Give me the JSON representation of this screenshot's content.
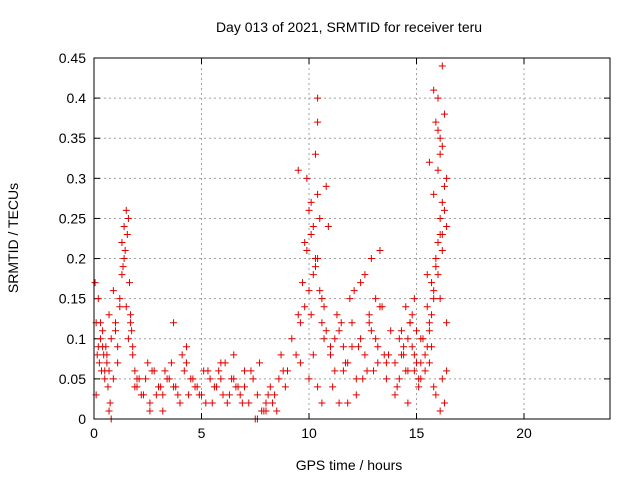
{
  "chart_data": {
    "type": "scatter",
    "title": "Day 013 of 2021, SRMTID for receiver teru",
    "xlabel": "GPS time / hours",
    "ylabel": "SRMTID / TECUs",
    "xlim": [
      0,
      24
    ],
    "ylim": [
      0,
      0.45
    ],
    "xticks": [
      0,
      5,
      10,
      15,
      20
    ],
    "yticks": [
      0,
      0.05,
      0.1,
      0.15,
      0.2,
      0.25,
      0.3,
      0.35,
      0.4,
      0.45
    ],
    "xtick_labels": [
      "0",
      "5",
      "10",
      "15",
      "20"
    ],
    "ytick_labels": [
      "0",
      "0.05",
      "0.1",
      "0.15",
      "0.2",
      "0.25",
      "0.3",
      "0.35",
      "0.4",
      "0.45"
    ],
    "grid": true,
    "marker": "+",
    "color": "#e00000",
    "series": [
      {
        "x": [
          0.05,
          0.1,
          0.15,
          0.2,
          0.25,
          0.3,
          0.35,
          0.4,
          0.45,
          0.5,
          0.55,
          0.6,
          0.65,
          0.7,
          0.1,
          0.2,
          0.3,
          0.4,
          0.5,
          0.6,
          0.7,
          0.8,
          0.9,
          1.0,
          1.1,
          1.2,
          0.9,
          1.0,
          1.1,
          1.2,
          1.3,
          1.4,
          1.3,
          1.35,
          1.4,
          1.45,
          1.5,
          1.55,
          1.6,
          1.65,
          1.7,
          1.75,
          1.5,
          1.6,
          1.7,
          1.8,
          1.9,
          2.0,
          1.8,
          1.9,
          0.7,
          0.8,
          0.75,
          2.0,
          2.2,
          2.4,
          2.6,
          2.8,
          3.0,
          3.2,
          3.4,
          3.6,
          3.8,
          4.0,
          4.2,
          4.4,
          4.6,
          4.8,
          5.0,
          5.2,
          5.4,
          5.6,
          5.8,
          6.0,
          6.2,
          6.4,
          6.6,
          6.8,
          7.0,
          2.1,
          2.5,
          2.9,
          3.3,
          3.7,
          4.1,
          4.5,
          4.9,
          5.3,
          5.7,
          6.1,
          6.5,
          6.9,
          2.3,
          2.7,
          3.1,
          3.5,
          3.9,
          4.3,
          4.7,
          5.1,
          5.5,
          5.9,
          6.3,
          6.7,
          3.7,
          4.3,
          6.5,
          5.9,
          3.2,
          2.6,
          7.0,
          7.2,
          7.4,
          7.6,
          7.8,
          8.0,
          8.2,
          8.4,
          8.6,
          8.8,
          7.5,
          7.9,
          8.3,
          7.7,
          8.1,
          8.5,
          7.3,
          8.7,
          8.9,
          7.6,
          8.0,
          9.0,
          9.2,
          9.4,
          9.6,
          9.8,
          10.0,
          10.2,
          10.4,
          10.6,
          10.8,
          11.0,
          9.5,
          9.7,
          9.9,
          10.1,
          10.3,
          10.5,
          10.7,
          9.6,
          9.8,
          10.0,
          10.2,
          10.4,
          10.6,
          9.9,
          10.1,
          10.3,
          10.5,
          10.7,
          10.0,
          10.2,
          10.4,
          10.6,
          10.4,
          10.4,
          10.3,
          10.8,
          9.5,
          10.9,
          10.1,
          11.0,
          11.2,
          11.4,
          11.6,
          11.8,
          12.0,
          12.2,
          12.4,
          12.6,
          12.8,
          13.0,
          13.2,
          13.4,
          13.6,
          13.8,
          11.1,
          11.5,
          11.9,
          12.3,
          12.7,
          13.1,
          13.5,
          11.3,
          11.7,
          12.1,
          12.5,
          12.9,
          13.3,
          13.7,
          11.2,
          11.6,
          12.0,
          12.4,
          12.8,
          13.2,
          13.6,
          12.6,
          12.9,
          13.1,
          13.3,
          12.2,
          11.8,
          11.4,
          14.0,
          14.2,
          14.4,
          14.6,
          14.8,
          15.0,
          15.2,
          14.1,
          14.3,
          14.5,
          14.7,
          14.9,
          15.1,
          14.0,
          14.4,
          14.8,
          15.2,
          14.2,
          14.6,
          15.0,
          14.5,
          14.9,
          14.3,
          14.7,
          15.1,
          14.6,
          14.9,
          15.2,
          15.4,
          15.6,
          15.8,
          16.0,
          16.2,
          16.4,
          15.3,
          15.5,
          15.7,
          15.9,
          16.1,
          16.3,
          15.4,
          15.6,
          15.8,
          16.0,
          16.2,
          16.4,
          15.5,
          15.7,
          15.9,
          16.1,
          16.3,
          15.6,
          15.8,
          16.0,
          16.2,
          15.9,
          16.1,
          16.3,
          15.8,
          16.0,
          16.2,
          16.0,
          16.1,
          16.2,
          16.0,
          16.1,
          16.2,
          15.9,
          16.1,
          16.3,
          16.4,
          15.7,
          15.5,
          16.4,
          15.6,
          15.8
        ],
        "y": [
          0.17,
          0.12,
          0.08,
          0.09,
          0.07,
          0.1,
          0.06,
          0.11,
          0.08,
          0.05,
          0.09,
          0.07,
          0.04,
          0.06,
          0.03,
          0.15,
          0.12,
          0.09,
          0.06,
          0.08,
          0.13,
          0.1,
          0.05,
          0.11,
          0.07,
          0.14,
          0.16,
          0.12,
          0.09,
          0.15,
          0.18,
          0.2,
          0.22,
          0.19,
          0.24,
          0.21,
          0.26,
          0.23,
          0.25,
          0.17,
          0.13,
          0.11,
          0.14,
          0.1,
          0.12,
          0.08,
          0.06,
          0.05,
          0.09,
          0.04,
          0.01,
          0.0,
          0.02,
          0.04,
          0.03,
          0.05,
          0.02,
          0.06,
          0.04,
          0.03,
          0.05,
          0.07,
          0.04,
          0.02,
          0.06,
          0.03,
          0.05,
          0.04,
          0.03,
          0.02,
          0.05,
          0.04,
          0.06,
          0.03,
          0.02,
          0.05,
          0.04,
          0.03,
          0.06,
          0.05,
          0.07,
          0.03,
          0.06,
          0.04,
          0.08,
          0.05,
          0.03,
          0.06,
          0.04,
          0.07,
          0.05,
          0.02,
          0.03,
          0.06,
          0.04,
          0.05,
          0.03,
          0.07,
          0.04,
          0.06,
          0.02,
          0.05,
          0.03,
          0.04,
          0.12,
          0.09,
          0.08,
          0.07,
          0.01,
          0.01,
          0.04,
          0.02,
          0.05,
          0.03,
          0.01,
          0.02,
          0.04,
          0.03,
          0.05,
          0.06,
          0.0,
          0.01,
          0.02,
          0.07,
          0.03,
          0.01,
          0.06,
          0.08,
          0.04,
          0.0,
          0.01,
          0.06,
          0.1,
          0.08,
          0.12,
          0.14,
          0.16,
          0.18,
          0.2,
          0.15,
          0.11,
          0.09,
          0.13,
          0.17,
          0.21,
          0.23,
          0.19,
          0.25,
          0.14,
          0.07,
          0.22,
          0.26,
          0.24,
          0.28,
          0.12,
          0.3,
          0.27,
          0.2,
          0.16,
          0.1,
          0.05,
          0.08,
          0.04,
          0.02,
          0.37,
          0.4,
          0.33,
          0.29,
          0.31,
          0.24,
          0.13,
          0.08,
          0.06,
          0.11,
          0.09,
          0.07,
          0.12,
          0.05,
          0.1,
          0.08,
          0.13,
          0.06,
          0.09,
          0.14,
          0.07,
          0.11,
          0.04,
          0.12,
          0.15,
          0.09,
          0.06,
          0.1,
          0.08,
          0.13,
          0.07,
          0.16,
          0.05,
          0.11,
          0.14,
          0.08,
          0.1,
          0.06,
          0.09,
          0.17,
          0.12,
          0.07,
          0.05,
          0.18,
          0.2,
          0.15,
          0.21,
          0.03,
          0.02,
          0.02,
          0.07,
          0.05,
          0.08,
          0.06,
          0.09,
          0.07,
          0.1,
          0.04,
          0.11,
          0.06,
          0.12,
          0.08,
          0.05,
          0.03,
          0.09,
          0.13,
          0.07,
          0.1,
          0.02,
          0.11,
          0.14,
          0.06,
          0.08,
          0.12,
          0.04,
          0.1,
          0.15,
          0.05,
          0.08,
          0.12,
          0.15,
          0.18,
          0.21,
          0.24,
          0.1,
          0.14,
          0.17,
          0.2,
          0.23,
          0.26,
          0.06,
          0.11,
          0.16,
          0.22,
          0.27,
          0.3,
          0.09,
          0.13,
          0.19,
          0.25,
          0.29,
          0.32,
          0.28,
          0.31,
          0.34,
          0.37,
          0.33,
          0.38,
          0.41,
          0.4,
          0.44,
          0.36,
          0.35,
          0.23,
          0.22,
          0.15,
          0.05,
          0.03,
          0.01,
          0.02,
          0.06,
          0.09,
          0.18,
          0.12,
          0.07,
          0.04
        ]
      }
    ]
  }
}
